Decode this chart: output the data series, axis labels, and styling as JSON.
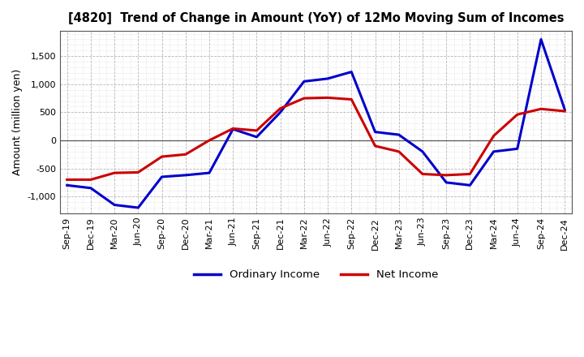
{
  "title": "[4820]  Trend of Change in Amount (YoY) of 12Mo Moving Sum of Incomes",
  "ylabel": "Amount (million yen)",
  "background_color": "#ffffff",
  "plot_bg_color": "#ffffff",
  "grid_color": "#999999",
  "x_labels": [
    "Sep-19",
    "Dec-19",
    "Mar-20",
    "Jun-20",
    "Sep-20",
    "Dec-20",
    "Mar-21",
    "Jun-21",
    "Sep-21",
    "Dec-21",
    "Mar-22",
    "Jun-22",
    "Sep-22",
    "Dec-22",
    "Mar-23",
    "Jun-23",
    "Sep-23",
    "Dec-23",
    "Mar-24",
    "Jun-24",
    "Sep-24",
    "Dec-24"
  ],
  "ordinary_income": [
    -800,
    -850,
    -1150,
    -1200,
    -650,
    -620,
    -580,
    200,
    60,
    500,
    1050,
    1100,
    1220,
    150,
    100,
    -200,
    -750,
    -800,
    -200,
    -150,
    1800,
    550
  ],
  "net_income": [
    -700,
    -700,
    -580,
    -570,
    -290,
    -250,
    0,
    210,
    175,
    570,
    750,
    760,
    730,
    -100,
    -200,
    -600,
    -620,
    -600,
    80,
    460,
    560,
    520
  ],
  "ordinary_color": "#0000cc",
  "net_color": "#cc0000",
  "ylim": [
    -1300,
    1950
  ],
  "yticks": [
    -1000,
    -500,
    0,
    500,
    1000,
    1500
  ],
  "legend_labels": [
    "Ordinary Income",
    "Net Income"
  ],
  "line_width": 2.2
}
